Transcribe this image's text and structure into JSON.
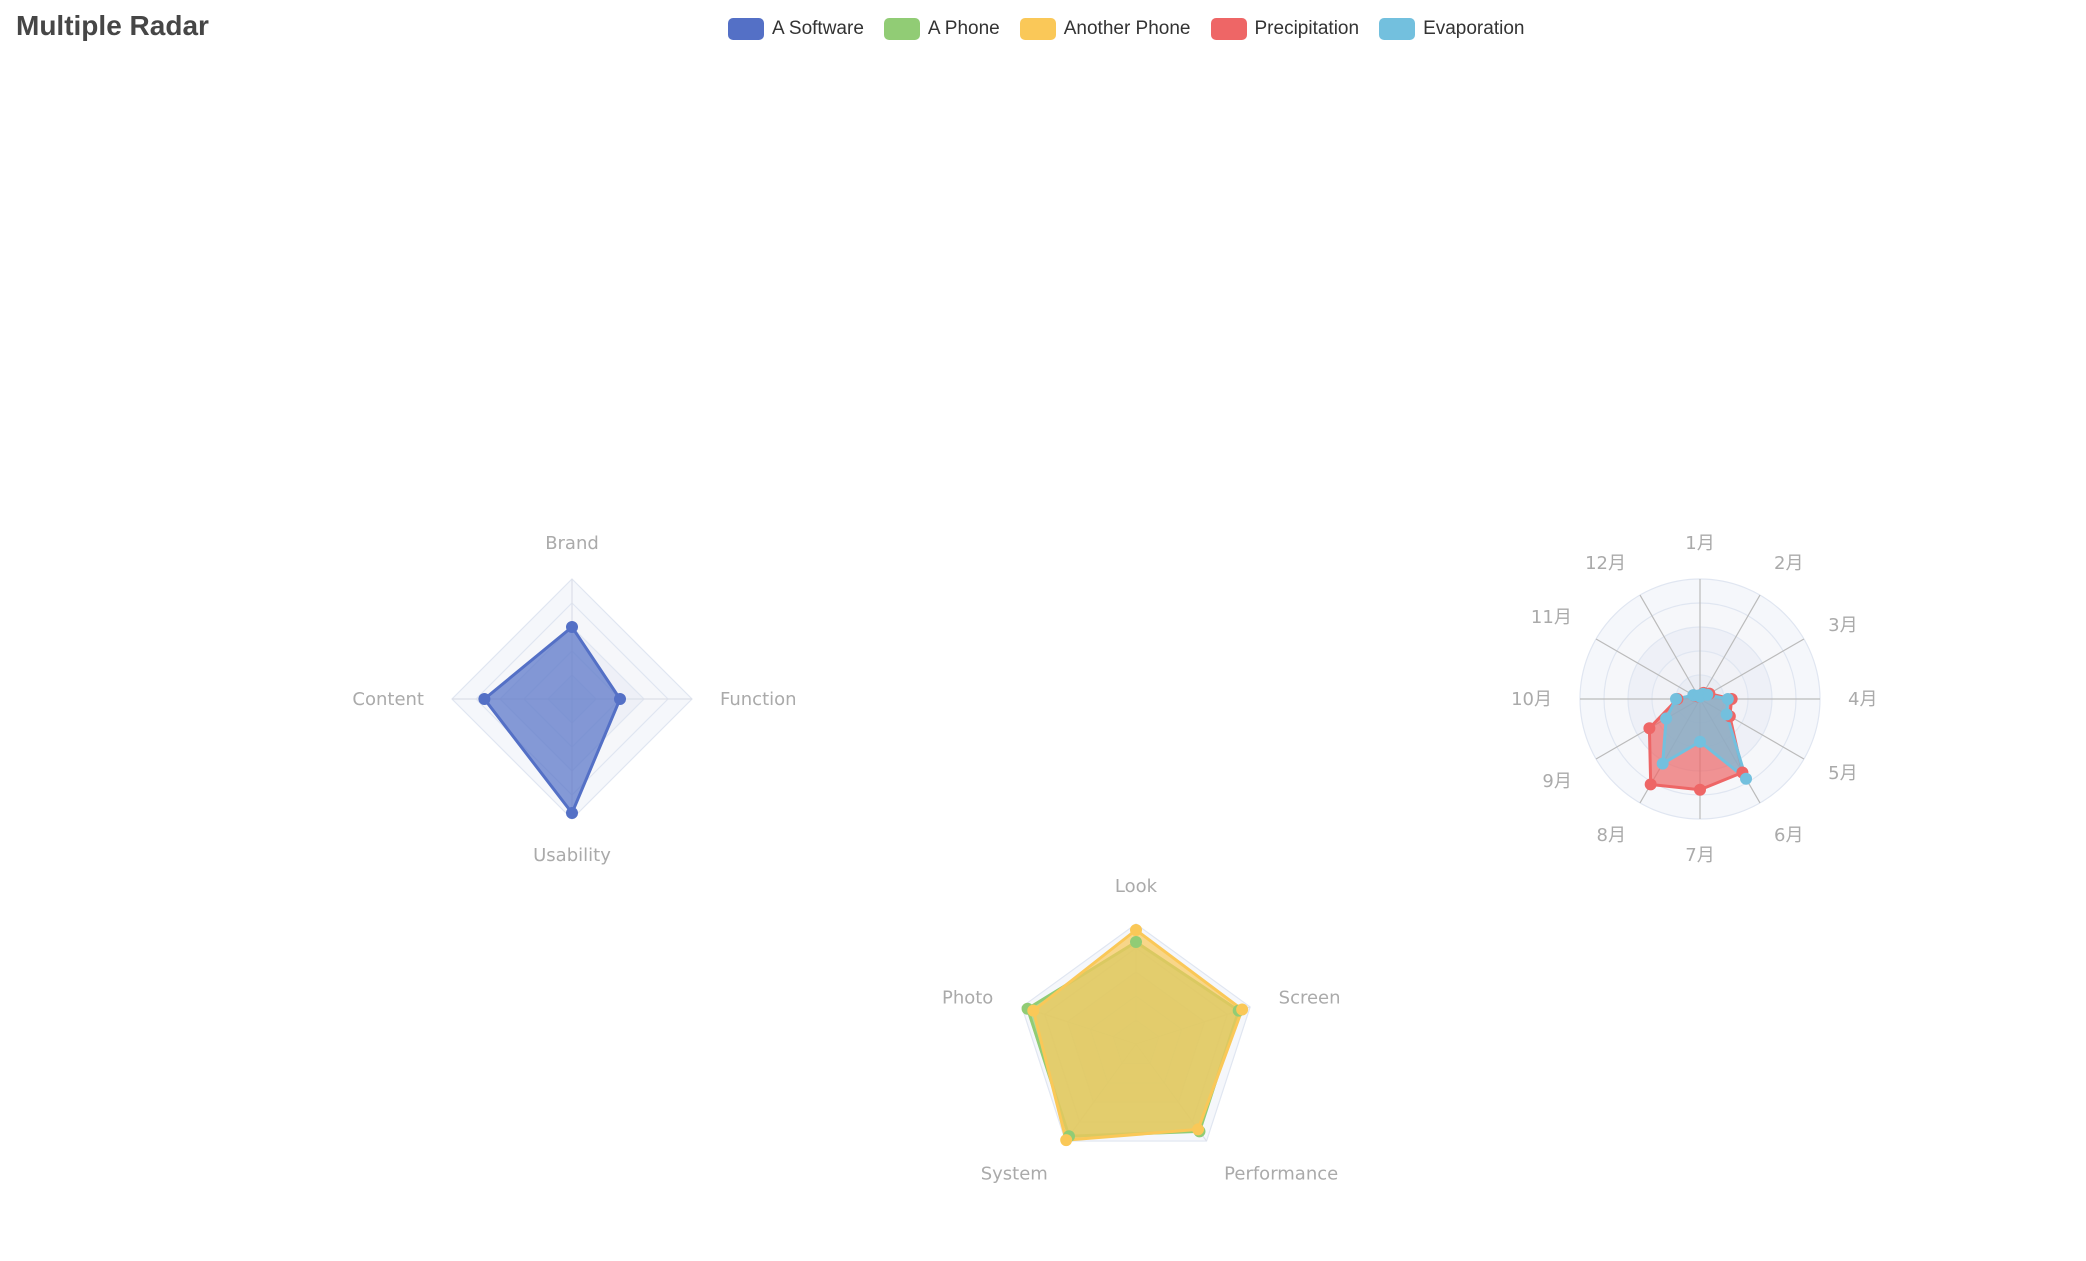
{
  "title": "Multiple Radar",
  "legend": [
    {
      "name": "A Software",
      "color": "#5470c6"
    },
    {
      "name": "A Phone",
      "color": "#91cc75"
    },
    {
      "name": "Another Phone",
      "color": "#fac858"
    },
    {
      "name": "Precipitation",
      "color": "#ee6666"
    },
    {
      "name": "Evaporation",
      "color": "#73c0de"
    }
  ],
  "chart_data": [
    {
      "type": "radar",
      "indicators": [
        {
          "name": "Brand",
          "max": 100
        },
        {
          "name": "Function",
          "max": 100
        },
        {
          "name": "Usability",
          "max": 100
        },
        {
          "name": "Content",
          "max": 100
        }
      ],
      "series": [
        {
          "name": "A Software",
          "color": "#5470c6",
          "values": [
            60,
            40,
            95,
            73
          ]
        }
      ]
    },
    {
      "type": "radar",
      "indicators": [
        {
          "name": "Look",
          "max": 100
        },
        {
          "name": "Screen",
          "max": 100
        },
        {
          "name": "Performance",
          "max": 100
        },
        {
          "name": "System",
          "max": 100
        },
        {
          "name": "Photo",
          "max": 100
        }
      ],
      "series": [
        {
          "name": "A Phone",
          "color": "#91cc75",
          "values": [
            85,
            90,
            90,
            95,
            95
          ]
        },
        {
          "name": "Another Phone",
          "color": "#fac858",
          "values": [
            95,
            93,
            88,
            99,
            90
          ]
        }
      ]
    },
    {
      "type": "radar",
      "indicators": [
        {
          "name": "1月",
          "max": 100
        },
        {
          "name": "2月",
          "max": 100
        },
        {
          "name": "3月",
          "max": 100
        },
        {
          "name": "4月",
          "max": 100
        },
        {
          "name": "5月",
          "max": 100
        },
        {
          "name": "6月",
          "max": 100
        },
        {
          "name": "7月",
          "max": 100
        },
        {
          "name": "8月",
          "max": 100
        },
        {
          "name": "9月",
          "max": 100
        },
        {
          "name": "10月",
          "max": 100
        },
        {
          "name": "11月",
          "max": 100
        },
        {
          "name": "12月",
          "max": 100
        }
      ],
      "series": [
        {
          "name": "Precipitation",
          "color": "#ee6666",
          "values": [
            2.6,
            5.9,
            9.0,
            26.4,
            28.7,
            70.7,
            75.6,
            82.2,
            48.7,
            18.8,
            6.0,
            2.3
          ]
        },
        {
          "name": "Evaporation",
          "color": "#73c0de",
          "values": [
            2.0,
            4.9,
            7.0,
            23.2,
            25.6,
            76.7,
            35.6,
            62.2,
            32.6,
            20.0,
            6.4,
            3.3
          ]
        }
      ]
    }
  ]
}
